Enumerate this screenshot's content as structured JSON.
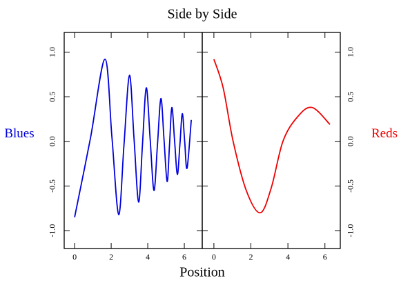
{
  "chart_data": {
    "title": "Side by Side",
    "x_label": "Position",
    "panels": [
      {
        "type": "line",
        "y_label": "Blues",
        "color": "#0000dd",
        "y_axis_side": "left",
        "x": [
          0,
          0.87,
          1.66,
          2.04,
          2.41,
          2.7,
          3.0,
          3.25,
          3.5,
          3.71,
          3.92,
          4.13,
          4.34,
          4.53,
          4.72,
          4.89,
          5.06,
          5.19,
          5.32,
          5.47,
          5.62,
          5.76,
          5.89,
          6.02,
          6.15,
          6.38
        ],
        "values": [
          -0.85,
          0.04,
          0.92,
          0.05,
          -0.82,
          -0.04,
          0.74,
          0.03,
          -0.68,
          -0.04,
          0.6,
          0.03,
          -0.55,
          -0.04,
          0.48,
          0.02,
          -0.45,
          -0.04,
          0.38,
          0,
          -0.37,
          -0.03,
          0.31,
          0,
          -0.3,
          0.24
        ],
        "xlim": [
          -0.57,
          6.98
        ],
        "xticks": [
          0,
          2,
          4,
          6
        ],
        "ylim": [
          -1.2,
          1.22
        ],
        "yticks": [
          {
            "value": -1,
            "label": "-1.0"
          },
          {
            "value": -0.5,
            "label": "-0.5"
          },
          {
            "value": 0,
            "label": "0.0"
          },
          {
            "value": 0.5,
            "label": "0.5"
          },
          {
            "value": 1,
            "label": "1.0"
          }
        ]
      },
      {
        "type": "line",
        "y_label": "Reds",
        "color": "#ee0000",
        "y_axis_side": "right",
        "x": [
          0,
          0.5,
          1.04,
          1.75,
          2.5,
          3.1,
          3.73,
          4.5,
          5.3,
          6.27
        ],
        "values": [
          0.92,
          0.6,
          0,
          -0.55,
          -0.8,
          -0.52,
          0,
          0.27,
          0.38,
          0.19
        ],
        "xlim": [
          -0.63,
          6.83
        ],
        "xticks": [
          0,
          2,
          4,
          6
        ],
        "ylim": [
          -1.2,
          1.22
        ],
        "yticks": [
          {
            "value": -1,
            "label": "-1.0"
          },
          {
            "value": -0.5,
            "label": "-0.5"
          },
          {
            "value": 0,
            "label": "0.0"
          },
          {
            "value": 0.5,
            "label": "0.5"
          },
          {
            "value": 1,
            "label": "1.0"
          }
        ]
      }
    ]
  }
}
